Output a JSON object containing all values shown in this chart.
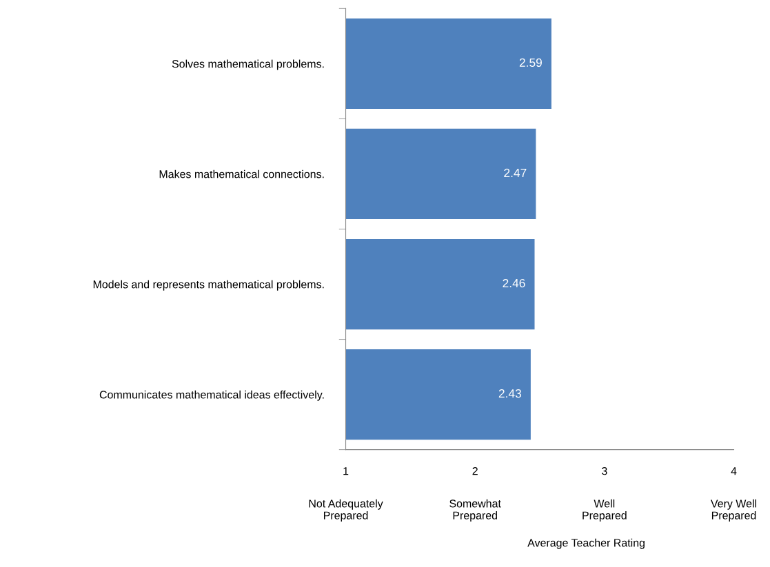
{
  "chart_data": {
    "type": "bar",
    "orientation": "horizontal",
    "categories": [
      "Solves mathematical problems.",
      "Makes mathematical connections.",
      "Models and represents mathematical problems.",
      "Communicates mathematical ideas effectively."
    ],
    "values": [
      2.59,
      2.47,
      2.46,
      2.43
    ],
    "color": "#4f81bd",
    "data_labels": true,
    "xlim": [
      1,
      4
    ],
    "xticks": [
      1,
      2,
      3,
      4
    ],
    "annotations": [
      "Not Adequately\nPrepared",
      "Somewhat\nPrepared",
      "Well\nPrepared",
      "Very Well\nPrepared",
      "Average Teacher Rating"
    ],
    "grid": false,
    "legend": false
  }
}
